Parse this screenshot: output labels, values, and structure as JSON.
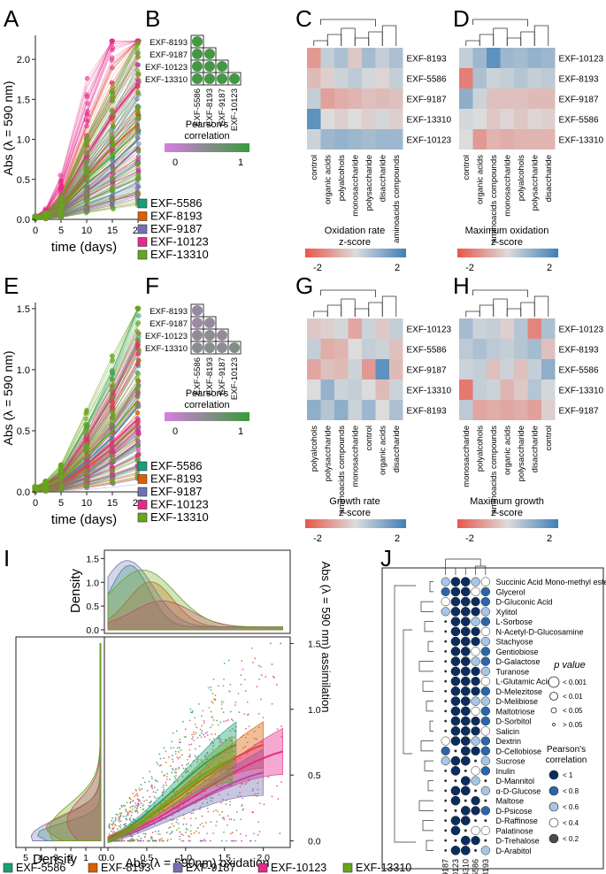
{
  "colors": {
    "EXF-5586": "#1b9e77",
    "EXF-8193": "#d95f02",
    "EXF-9187": "#7570b3",
    "EXF-10123": "#e7298a",
    "EXF-13310": "#66a61e",
    "heat_low": "#e8564a",
    "heat_mid": "#dcdcdc",
    "heat_high": "#3f7fb8",
    "corr_low": "#d67fe0",
    "corr_high": "#3a9a3a"
  },
  "strain_legend": [
    "EXF-5586",
    "EXF-8193",
    "EXF-9187",
    "EXF-10123",
    "EXF-13310"
  ],
  "panel_labels": {
    "a": "A",
    "b": "B",
    "c": "C",
    "d": "D",
    "e": "E",
    "f": "F",
    "g": "G",
    "h": "H",
    "i": "I",
    "j": "J"
  },
  "chart_data": [
    {
      "id": "A",
      "type": "line",
      "title": "",
      "xlabel": "time (days)",
      "ylabel": "Abs (λ = 590 nm)",
      "x": [
        0,
        2,
        5,
        10,
        15,
        20
      ],
      "xticks": [
        "0",
        "5",
        "10",
        "15",
        "20"
      ],
      "yticks": [
        "0.0",
        "0.5",
        "1.0",
        "1.5",
        "2.0"
      ],
      "ylim": [
        0,
        2.3
      ],
      "series": [
        {
          "name": "EXF-5586",
          "values": [
            0.02,
            0.05,
            0.12,
            0.45,
            0.7,
            1.0
          ]
        },
        {
          "name": "EXF-8193",
          "values": [
            0.02,
            0.04,
            0.15,
            0.55,
            0.9,
            1.2
          ]
        },
        {
          "name": "EXF-9187",
          "values": [
            0.02,
            0.03,
            0.1,
            0.35,
            0.6,
            0.9
          ]
        },
        {
          "name": "EXF-10123",
          "values": [
            0.02,
            0.06,
            0.25,
            0.8,
            1.3,
            1.7
          ]
        },
        {
          "name": "EXF-13310",
          "values": [
            0.02,
            0.04,
            0.14,
            0.5,
            0.8,
            1.1
          ]
        }
      ]
    },
    {
      "id": "B",
      "type": "heatmap",
      "rows": [
        "EXF-8193",
        "EXF-9187",
        "EXF-10123",
        "EXF-13310"
      ],
      "cols": [
        "EXF-5586",
        "EXF-8193",
        "EXF-9187",
        "EXF-10123"
      ],
      "values": [
        [
          0.95
        ],
        [
          0.95,
          0.95
        ],
        [
          0.95,
          0.95,
          0.95
        ],
        [
          0.95,
          0.95,
          0.95,
          0.95
        ]
      ],
      "legend_title": "Pearson's correlation",
      "legend_ticks": [
        "0",
        "1"
      ]
    },
    {
      "id": "C",
      "type": "heatmap",
      "rows": [
        "EXF-8193",
        "EXF-5586",
        "EXF-9187",
        "EXF-13310",
        "EXF-10123"
      ],
      "cols": [
        "control",
        "organic acids",
        "polyalcohols",
        "monosaccharide",
        "polysaccharide",
        "disaccharide",
        "aminoacids compounds"
      ],
      "values": [
        [
          -1.0,
          0.3,
          0.6,
          -0.3,
          0.7,
          0.3,
          0.6
        ],
        [
          -0.5,
          -0.2,
          0.2,
          0.4,
          0.1,
          -0.1,
          0.3
        ],
        [
          0.3,
          -0.9,
          -0.7,
          -0.6,
          -0.4,
          -0.5,
          -0.4
        ],
        [
          1.6,
          0.0,
          -0.2,
          0.0,
          -0.2,
          0.1,
          -0.2
        ],
        [
          0.2,
          0.8,
          0.9,
          0.8,
          0.7,
          0.8,
          0.8
        ]
      ],
      "legend_title": "Oxidation rate z-score",
      "legend_ticks": [
        "-2",
        "2"
      ]
    },
    {
      "id": "D",
      "type": "heatmap",
      "rows": [
        "EXF-10123",
        "EXF-8193",
        "EXF-9187",
        "EXF-5586",
        "EXF-13310"
      ],
      "cols": [
        "control",
        "organic acids",
        "aminoacids compounds",
        "monosaccharide",
        "polyalcohols",
        "polysaccharide",
        "disaccharide"
      ],
      "values": [
        [
          0.3,
          0.8,
          1.6,
          0.8,
          0.7,
          0.9,
          0.8
        ],
        [
          -1.4,
          0.6,
          0.2,
          0.3,
          0.5,
          0.3,
          0.4
        ],
        [
          1.0,
          0.2,
          -0.4,
          -0.4,
          -0.4,
          -0.5,
          -0.5
        ],
        [
          0.1,
          0.0,
          -0.3,
          -0.1,
          -0.3,
          -0.1,
          -0.2
        ],
        [
          0.0,
          -1.0,
          -0.6,
          -0.7,
          -0.6,
          -0.6,
          -0.6
        ]
      ],
      "legend_title": "Maximum oxidation z-score",
      "legend_ticks": [
        "-2",
        "2"
      ]
    },
    {
      "id": "E",
      "type": "line",
      "xlabel": "time (days)",
      "ylabel": "Abs (λ = 590 nm)",
      "x": [
        0,
        2,
        5,
        10,
        15,
        20
      ],
      "xticks": [
        "0",
        "5",
        "10",
        "15",
        "20"
      ],
      "yticks": [
        "0.0",
        "0.5",
        "1.0",
        "1.5"
      ],
      "ylim": [
        0,
        1.55
      ],
      "series": [
        {
          "name": "EXF-5586",
          "values": [
            0.02,
            0.03,
            0.08,
            0.25,
            0.45,
            0.7
          ]
        },
        {
          "name": "EXF-8193",
          "values": [
            0.02,
            0.03,
            0.06,
            0.2,
            0.35,
            0.55
          ]
        },
        {
          "name": "EXF-9187",
          "values": [
            0.02,
            0.02,
            0.04,
            0.12,
            0.25,
            0.4
          ]
        },
        {
          "name": "EXF-10123",
          "values": [
            0.02,
            0.03,
            0.07,
            0.22,
            0.4,
            0.6
          ]
        },
        {
          "name": "EXF-13310",
          "values": [
            0.02,
            0.04,
            0.1,
            0.3,
            0.5,
            0.75
          ]
        }
      ]
    },
    {
      "id": "F",
      "type": "heatmap",
      "rows": [
        "EXF-8193",
        "EXF-9187",
        "EXF-10123",
        "EXF-13310"
      ],
      "cols": [
        "EXF-5586",
        "EXF-8193",
        "EXF-9187",
        "EXF-10123"
      ],
      "values": [
        [
          0.4
        ],
        [
          0.35,
          0.4
        ],
        [
          0.45,
          0.45,
          0.4
        ],
        [
          0.5,
          0.5,
          0.45,
          0.55
        ]
      ],
      "legend_title": "Pearson's correlation",
      "legend_ticks": [
        "0",
        "1"
      ]
    },
    {
      "id": "G",
      "type": "heatmap",
      "rows": [
        "EXF-10123",
        "EXF-5586",
        "EXF-9187",
        "EXF-13310",
        "EXF-8193"
      ],
      "cols": [
        "polyalcohols",
        "polysaccharide",
        "aminoacids compounds",
        "monosaccharide",
        "control",
        "organic acids",
        "disaccharide"
      ],
      "values": [
        [
          -0.3,
          -0.2,
          0.1,
          -0.8,
          0.2,
          -0.3,
          0.3
        ],
        [
          0.3,
          -0.7,
          -0.6,
          0.0,
          0.3,
          0.2,
          -0.4
        ],
        [
          -0.8,
          -0.4,
          -0.5,
          0.2,
          -1.0,
          1.6,
          -0.5
        ],
        [
          0.0,
          0.9,
          0.2,
          0.3,
          0.0,
          -0.5,
          0.2
        ],
        [
          1.0,
          0.5,
          1.0,
          0.2,
          0.8,
          0.0,
          0.6
        ]
      ],
      "legend_title": "Growth rate z-score",
      "legend_ticks": [
        "-2",
        "2"
      ]
    },
    {
      "id": "H",
      "type": "heatmap",
      "rows": [
        "EXF-10123",
        "EXF-8193",
        "EXF-5586",
        "EXF-13310",
        "EXF-9187"
      ],
      "cols": [
        "monosaccharide",
        "polyalcohols",
        "aminoacids compounds",
        "organic acids",
        "polysaccharide",
        "disaccharide",
        "control"
      ],
      "values": [
        [
          0.7,
          0.2,
          0.3,
          -0.2,
          0.5,
          -1.3,
          0.6
        ],
        [
          0.4,
          0.6,
          0.4,
          0.3,
          0.5,
          0.7,
          -0.4
        ],
        [
          0.2,
          0.3,
          -0.4,
          0.2,
          -0.4,
          0.3,
          1.0
        ],
        [
          -1.5,
          0.3,
          0.2,
          -0.6,
          -0.3,
          0.5,
          0.1
        ],
        [
          0.4,
          -0.8,
          -0.7,
          -0.8,
          -0.7,
          -0.9,
          -0.2
        ]
      ],
      "legend_title": "Maximum growth z-score",
      "legend_ticks": [
        "-2",
        "2"
      ]
    },
    {
      "id": "I",
      "type": "scatter",
      "xlabel": "Abs (λ = 590nm) oxidation",
      "ylabel": "Abs (λ = 590 nm) assimilation",
      "xticks": [
        "0.0",
        "0.5",
        "1.0",
        "1.5",
        "2.0"
      ],
      "yticks": [
        "0.0",
        "0.5",
        "1.0",
        "1.5"
      ],
      "xlim": [
        0,
        2.3
      ],
      "ylim": [
        -0.05,
        1.55
      ],
      "top_density": {
        "ylabel": "Density",
        "yticks": [
          "0.0",
          "0.5",
          "1.0",
          "1.5"
        ]
      },
      "left_density": {
        "xlabel": "Density",
        "xticks": [
          "5",
          "4",
          "3",
          "2",
          "1",
          "0"
        ]
      },
      "series": [
        {
          "name": "EXF-5586",
          "fit_x": [
            0.0,
            1.65
          ],
          "fit_y": [
            0.02,
            0.73
          ]
        },
        {
          "name": "EXF-8193",
          "fit_x": [
            0.0,
            2.0
          ],
          "fit_y": [
            0.02,
            0.73
          ]
        },
        {
          "name": "EXF-9187",
          "fit_x": [
            0.0,
            2.0
          ],
          "fit_y": [
            0.0,
            0.52
          ]
        },
        {
          "name": "EXF-10123",
          "fit_x": [
            0.0,
            2.25
          ],
          "fit_y": [
            0.01,
            0.68
          ]
        },
        {
          "name": "EXF-13310",
          "fit_x": [
            0.0,
            1.6
          ],
          "fit_y": [
            0.0,
            0.62
          ]
        }
      ],
      "legend": [
        "EXF-5586",
        "EXF-8193",
        "EXF-9187",
        "EXF-10123",
        "EXF-13310"
      ]
    },
    {
      "id": "J",
      "type": "heatmap",
      "rows": [
        "Succinic Acid Mono-methyl ester",
        "Glycerol",
        "D-Gluconic Acid",
        "Xylitol",
        "L-Sorbose",
        "N-Acetyl-D-Glucosamine",
        "Stachyose",
        "Gentiobiose",
        "D-Galactose",
        "Turanose",
        "L-Glutamic Acid",
        "D-Melezitose",
        "D-Melibiose",
        "Maltotriose",
        "D-Sorbitol",
        "Salicin",
        "Dextrin",
        "D-Cellobiose",
        "Sucrose",
        "Inulin",
        "D-Mannitol",
        "α-D-Glucose",
        "Maltose",
        "D-Psicose",
        "D-Raffinose",
        "Palatinose",
        "D-Trehalose",
        "D-Arabitol"
      ],
      "cols": [
        "EXF-9187",
        "EXF-10123",
        "EXF-13310",
        "EXF-5586",
        "EXF-8193"
      ],
      "pvalue_legend": {
        "title": "p value",
        "labels": [
          "< 0.001",
          "< 0.01",
          "< 0.05",
          "> 0.05"
        ]
      },
      "corr_legend": {
        "title": "Pearson's correlation",
        "labels": [
          "< 1",
          "< 0.8",
          "< 0.6",
          "< 0.4",
          "< 0.2"
        ]
      }
    }
  ]
}
